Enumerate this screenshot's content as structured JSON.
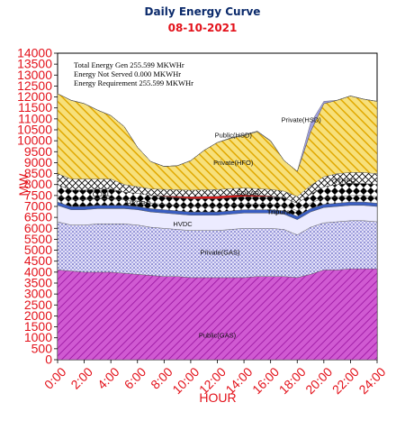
{
  "header": {
    "title": "Daily Energy Curve",
    "date": "08-10-2021"
  },
  "stats": {
    "line1": "Total Energy Gen 255.599 MKWHr",
    "line2": "Energy Not Served   0.000 MKWHr",
    "line3": "Energy Requirement      255.599 MKWHr"
  },
  "chart_data": {
    "type": "area",
    "stacked": true,
    "title": "Daily Energy Curve",
    "subtitle": "08-10-2021",
    "xlabel": "HOUR",
    "ylabel": "MW",
    "xlim": [
      0,
      24
    ],
    "ylim": [
      0,
      14000
    ],
    "ytick_step": 500,
    "x_ticks": [
      "0:00",
      "2:00",
      "4:00",
      "6:00",
      "8:00",
      "10:00",
      "12:00",
      "14:00",
      "16:00",
      "18:00",
      "20:00",
      "22:00",
      "24:00"
    ],
    "x": [
      0,
      1,
      2,
      3,
      4,
      5,
      6,
      7,
      8,
      9,
      10,
      11,
      12,
      13,
      14,
      15,
      16,
      17,
      18,
      19,
      20,
      21,
      22,
      23,
      24
    ],
    "series": [
      {
        "name": "Public(GAS)",
        "color": "#c83cc8",
        "pattern": "diag-purple",
        "values": [
          4100,
          4050,
          4000,
          4000,
          4000,
          3950,
          3900,
          3850,
          3800,
          3800,
          3750,
          3750,
          3750,
          3750,
          3750,
          3800,
          3800,
          3800,
          3750,
          3900,
          4100,
          4100,
          4150,
          4150,
          4150
        ]
      },
      {
        "name": "Private(GAS)",
        "color": "#8a84d8",
        "pattern": "dots-blue",
        "values": [
          2200,
          2100,
          2150,
          2200,
          2200,
          2250,
          2250,
          2200,
          2200,
          2150,
          2150,
          2150,
          2150,
          2200,
          2250,
          2200,
          2200,
          2150,
          1950,
          2150,
          2150,
          2200,
          2200,
          2200,
          2150
        ]
      },
      {
        "name": "HVDC",
        "color": "#ece9ff",
        "pattern": "solid-lavender",
        "values": [
          750,
          700,
          700,
          700,
          700,
          700,
          700,
          700,
          700,
          700,
          700,
          700,
          700,
          700,
          700,
          700,
          700,
          700,
          700,
          700,
          700,
          700,
          700,
          700,
          700
        ]
      },
      {
        "name": "Tripura",
        "color": "#3a5ec2",
        "pattern": "solid-blue",
        "values": [
          150,
          150,
          150,
          150,
          150,
          150,
          150,
          150,
          150,
          150,
          150,
          150,
          150,
          150,
          150,
          150,
          150,
          150,
          150,
          150,
          150,
          150,
          150,
          150,
          150
        ]
      },
      {
        "name": "HYDRO",
        "color": "#000000",
        "pattern": "diamond",
        "values": [
          300,
          300,
          300,
          300,
          300,
          250,
          250,
          250,
          250,
          250,
          250,
          250,
          250,
          250,
          250,
          250,
          250,
          250,
          250,
          250,
          300,
          300,
          300,
          300,
          300
        ]
      },
      {
        "name": "COAL",
        "color": "#000000",
        "pattern": "diamond",
        "values": [
          500,
          450,
          450,
          450,
          450,
          350,
          350,
          350,
          350,
          350,
          350,
          350,
          350,
          350,
          350,
          350,
          350,
          350,
          350,
          400,
          500,
          550,
          550,
          550,
          550
        ]
      },
      {
        "name": "SOLAR",
        "color": "#d61818",
        "pattern": "solid-red",
        "values": [
          0,
          0,
          0,
          0,
          0,
          0,
          0,
          0,
          30,
          60,
          90,
          110,
          120,
          110,
          90,
          60,
          30,
          0,
          0,
          0,
          0,
          0,
          0,
          0,
          0
        ]
      },
      {
        "name": "OTHER",
        "color": "#ffffff",
        "pattern": "hatch-black",
        "values": [
          500,
          500,
          500,
          450,
          450,
          350,
          300,
          300,
          300,
          300,
          300,
          300,
          300,
          300,
          300,
          300,
          300,
          300,
          300,
          400,
          450,
          500,
          500,
          500,
          500
        ]
      },
      {
        "name": "Private(HFO)",
        "color": "#f2c91c",
        "pattern": "stripe-yellow",
        "values": [
          3650,
          3600,
          3450,
          3150,
          2900,
          2650,
          1800,
          1250,
          1050,
          1100,
          1350,
          1800,
          2150,
          2300,
          2400,
          2600,
          2200,
          1400,
          1150,
          2450,
          3350,
          3350,
          3500,
          3350,
          3300
        ]
      },
      {
        "name": "Public(HSD)",
        "color": "#f0e8c0",
        "pattern": "solid-cream",
        "values": [
          0,
          0,
          0,
          0,
          0,
          0,
          0,
          0,
          0,
          0,
          0,
          0,
          0,
          20,
          30,
          30,
          20,
          0,
          0,
          0,
          0,
          0,
          0,
          0,
          0
        ]
      },
      {
        "name": "Private(HSD)",
        "color": "#9e9ee0",
        "pattern": "solid-lilac",
        "values": [
          0,
          0,
          0,
          0,
          0,
          0,
          0,
          0,
          0,
          0,
          0,
          0,
          0,
          0,
          0,
          0,
          0,
          0,
          0,
          400,
          100,
          0,
          0,
          0,
          0
        ]
      }
    ],
    "labels": [
      {
        "text": "Public(GAS)",
        "x": 12,
        "y": 1000
      },
      {
        "text": "Private(GAS)",
        "x": 12.2,
        "y": 4800
      },
      {
        "text": "HVDC",
        "x": 9.4,
        "y": 6100
      },
      {
        "text": "Tripura",
        "x": 16.6,
        "y": 6650
      },
      {
        "text": "HYDRO",
        "x": 6.1,
        "y": 7050
      },
      {
        "text": "COAL",
        "x": 3.3,
        "y": 7450
      },
      {
        "text": "SOLAR",
        "x": 14.3,
        "y": 7500
      },
      {
        "text": "OTHER",
        "x": 21.5,
        "y": 8050
      },
      {
        "text": "Private(HFO)",
        "x": 13.2,
        "y": 8900
      },
      {
        "text": "Public(HSD)",
        "x": 13.2,
        "y": 10150
      },
      {
        "text": "Private(HSD)",
        "x": 18.3,
        "y": 10850
      }
    ]
  }
}
